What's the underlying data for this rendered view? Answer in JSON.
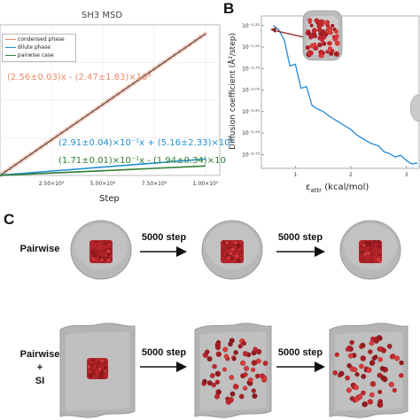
{
  "panel_a": {
    "title": "SH3 MSD",
    "legend": [
      "condensed phase",
      "dilute phase",
      "pairwise case"
    ],
    "colors": {
      "condensed": "#e8896a",
      "dilute": "#1f8fd0",
      "pairwise": "#2e7d32"
    },
    "xlabel": "Step",
    "xticks": [
      "2.50×10⁴",
      "5.00×10⁴",
      "7.50×10⁴",
      "1.00×10⁵"
    ],
    "fit_condensed": "(2.56±0.03)x - (2.47±1.83)×10³",
    "fit_dilute": "(2.91±0.04)×10⁻¹x + (5.16±2.33)×10²",
    "fit_pairwise": "(1.71±0.01)×10⁻¹x - (1.94±0.34)×10"
  },
  "panel_b": {
    "letter": "B",
    "ylabel": "Diffusion coefficient (Å²/step)",
    "xlabel": "ε",
    "xlabel_sub": "attr",
    "xlabel_unit": " (kcal/mol)",
    "yticks": [
      "10⁻¹·²⁵",
      "10⁻¹·⁵⁰",
      "10⁻¹·⁷⁵",
      "10⁻²·⁰⁰",
      "10⁻²·²⁵",
      "10⁻²·⁵⁰",
      "10⁻²·⁷⁵"
    ],
    "xticks": [
      "1",
      "2",
      "3"
    ]
  },
  "panel_c": {
    "letter": "C",
    "row1_label": "Pairwise",
    "row2_label_lines": [
      "Pairwise",
      "+",
      "SI"
    ],
    "step_label": "5000 step"
  },
  "chart_data": [
    {
      "type": "line",
      "title": "SH3 MSD",
      "xlabel": "Step",
      "xlim": [
        0,
        100000
      ],
      "series": [
        {
          "name": "condensed phase",
          "x": [
            0,
            25000,
            50000,
            75000,
            100000
          ],
          "y": [
            0,
            64000,
            128000,
            192000,
            256000
          ]
        },
        {
          "name": "dilute phase",
          "x": [
            0,
            25000,
            50000,
            75000,
            100000
          ],
          "y": [
            516,
            7800,
            15100,
            22300,
            29600
          ]
        },
        {
          "name": "pairwise case",
          "x": [
            0,
            25000,
            50000,
            75000,
            100000
          ],
          "y": [
            0,
            4250,
            8530,
            12800,
            17080
          ]
        }
      ]
    },
    {
      "type": "line",
      "ylabel": "Diffusion coefficient (Å²/step)",
      "xlabel": "εattr (kcal/mol)",
      "y_scale": "log",
      "series": [
        {
          "x": [
            0.6,
            0.7,
            0.8,
            0.9,
            1.0,
            1.1,
            1.2,
            1.3,
            1.4,
            1.5,
            1.6,
            1.7,
            1.8,
            1.9,
            2.0,
            2.1,
            2.2,
            2.3,
            2.4,
            2.5,
            2.6,
            2.7,
            2.8,
            2.9,
            3.0,
            3.1,
            3.2
          ],
          "y_log10": [
            -1.25,
            -1.3,
            -1.42,
            -1.72,
            -1.7,
            -1.98,
            -1.96,
            -2.18,
            -2.22,
            -2.25,
            -2.3,
            -2.34,
            -2.38,
            -2.42,
            -2.46,
            -2.52,
            -2.56,
            -2.6,
            -2.63,
            -2.65,
            -2.72,
            -2.74,
            -2.78,
            -2.76,
            -2.82,
            -2.86,
            -2.85
          ]
        }
      ]
    }
  ]
}
